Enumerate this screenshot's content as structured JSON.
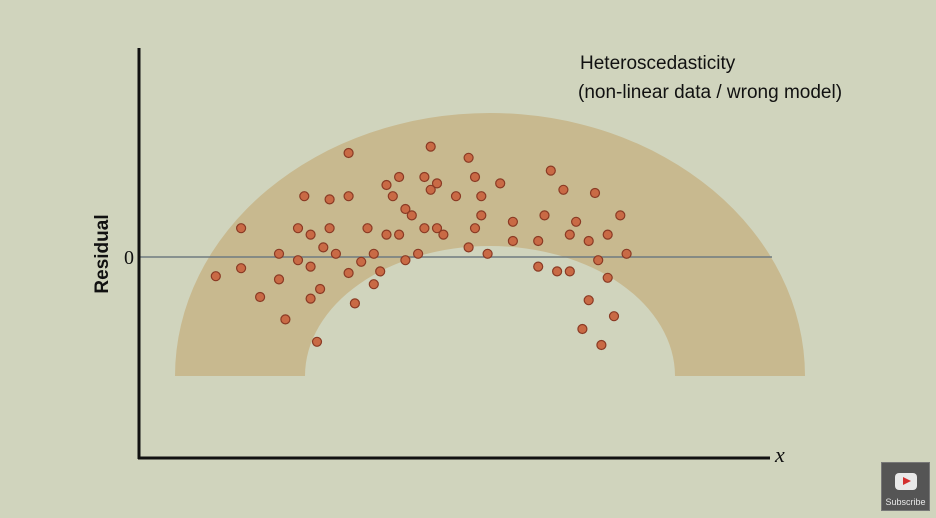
{
  "chart_data": {
    "type": "scatter",
    "title": "Heteroscedasticity",
    "subtitle": "(non-linear data / wrong model)",
    "xlabel": "x",
    "ylabel": "Residual",
    "ytick_labels": [
      {
        "value": 0,
        "label": "0"
      }
    ],
    "xlim": [
      0,
      100
    ],
    "ylim": [
      -100,
      100
    ],
    "grid": false,
    "legend": "none",
    "colors": {
      "background": "#d0d4bd",
      "band": "#c8b98f",
      "point_fill": "#c96a45",
      "point_stroke": "#8a3a24",
      "zero_line": "#6f7b80",
      "axis": "#111111"
    },
    "points": [
      {
        "x": 12,
        "y": -12
      },
      {
        "x": 16,
        "y": 18
      },
      {
        "x": 16,
        "y": -7
      },
      {
        "x": 19,
        "y": -25
      },
      {
        "x": 22,
        "y": 2
      },
      {
        "x": 22,
        "y": -14
      },
      {
        "x": 23,
        "y": -39
      },
      {
        "x": 25,
        "y": -2
      },
      {
        "x": 25,
        "y": 18
      },
      {
        "x": 26,
        "y": 38
      },
      {
        "x": 27,
        "y": 14
      },
      {
        "x": 27,
        "y": -6
      },
      {
        "x": 27,
        "y": -26
      },
      {
        "x": 28,
        "y": -53
      },
      {
        "x": 28.5,
        "y": -20
      },
      {
        "x": 29,
        "y": 6
      },
      {
        "x": 30,
        "y": 18
      },
      {
        "x": 30,
        "y": 36
      },
      {
        "x": 31,
        "y": 2
      },
      {
        "x": 33,
        "y": 65
      },
      {
        "x": 33,
        "y": 38
      },
      {
        "x": 33,
        "y": -10
      },
      {
        "x": 34,
        "y": -29
      },
      {
        "x": 35,
        "y": -3
      },
      {
        "x": 36,
        "y": 18
      },
      {
        "x": 37,
        "y": 2
      },
      {
        "x": 37,
        "y": -17
      },
      {
        "x": 38,
        "y": -9
      },
      {
        "x": 39,
        "y": 45
      },
      {
        "x": 39,
        "y": 14
      },
      {
        "x": 40,
        "y": 38
      },
      {
        "x": 41,
        "y": 50
      },
      {
        "x": 41,
        "y": 14
      },
      {
        "x": 42,
        "y": 30
      },
      {
        "x": 42,
        "y": -2
      },
      {
        "x": 43,
        "y": 26
      },
      {
        "x": 44,
        "y": 2
      },
      {
        "x": 45,
        "y": 50
      },
      {
        "x": 45,
        "y": 18
      },
      {
        "x": 46,
        "y": 42
      },
      {
        "x": 46,
        "y": 69
      },
      {
        "x": 47,
        "y": 46
      },
      {
        "x": 47,
        "y": 18
      },
      {
        "x": 48,
        "y": 14
      },
      {
        "x": 50,
        "y": 38
      },
      {
        "x": 52,
        "y": 62
      },
      {
        "x": 52,
        "y": 6
      },
      {
        "x": 53,
        "y": 50
      },
      {
        "x": 53,
        "y": 18
      },
      {
        "x": 54,
        "y": 38
      },
      {
        "x": 54,
        "y": 26
      },
      {
        "x": 55,
        "y": 2
      },
      {
        "x": 57,
        "y": 46
      },
      {
        "x": 59,
        "y": 22
      },
      {
        "x": 59,
        "y": 10
      },
      {
        "x": 63,
        "y": 10
      },
      {
        "x": 63,
        "y": -6
      },
      {
        "x": 64,
        "y": 26
      },
      {
        "x": 65,
        "y": 54
      },
      {
        "x": 66,
        "y": -9
      },
      {
        "x": 67,
        "y": 42
      },
      {
        "x": 68,
        "y": 14
      },
      {
        "x": 68,
        "y": -9
      },
      {
        "x": 69,
        "y": 22
      },
      {
        "x": 70,
        "y": -45
      },
      {
        "x": 71,
        "y": -27
      },
      {
        "x": 71,
        "y": 10
      },
      {
        "x": 72,
        "y": 40
      },
      {
        "x": 72.5,
        "y": -2
      },
      {
        "x": 73,
        "y": -55
      },
      {
        "x": 74,
        "y": -13
      },
      {
        "x": 74,
        "y": 14
      },
      {
        "x": 75,
        "y": -37
      },
      {
        "x": 76,
        "y": 26
      },
      {
        "x": 77,
        "y": 2
      }
    ]
  },
  "subscribe": {
    "label": "Subscribe",
    "icon": "play-icon"
  }
}
